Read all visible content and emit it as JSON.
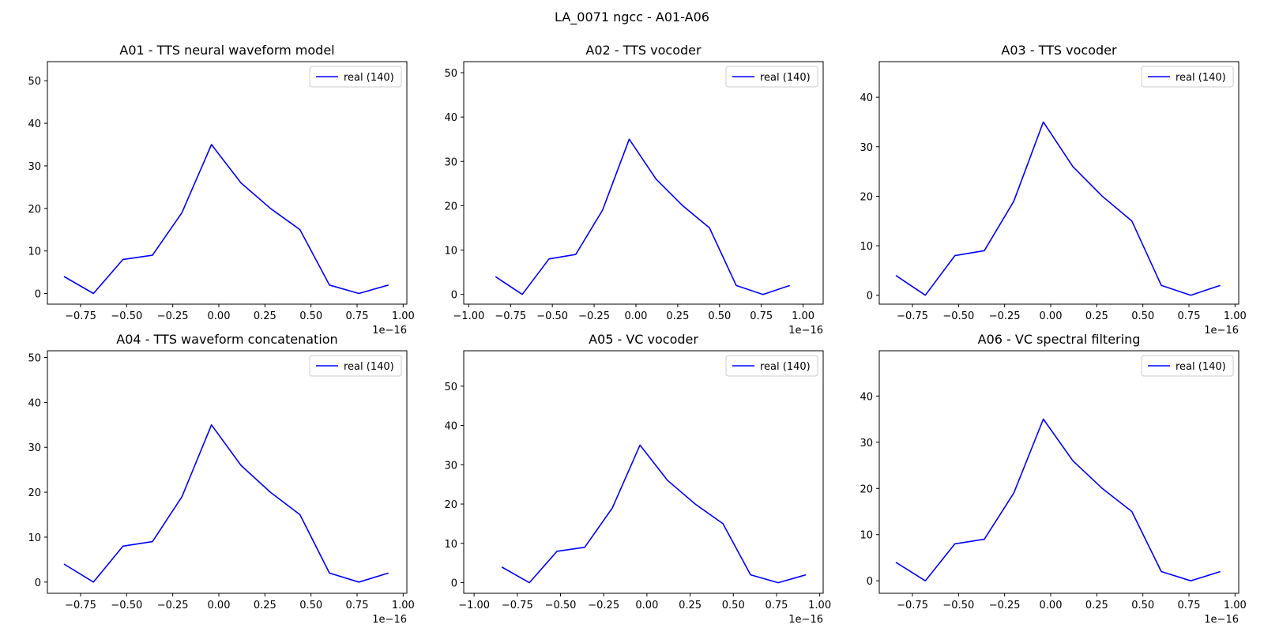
{
  "suptitle": "LA_0071 ngcc - A01-A06",
  "chart_data": [
    {
      "type": "line",
      "title": "A01 - TTS neural waveform model",
      "x_offset_label": "1e−16",
      "xlim": [
        -0.93,
        1.02
      ],
      "ylim": [
        -2.5,
        54.5
      ],
      "xticks": [
        -0.75,
        -0.5,
        -0.25,
        0.0,
        0.25,
        0.5,
        0.75,
        1.0
      ],
      "xtick_labels": [
        "−0.75",
        "−0.50",
        "−0.25",
        "0.00",
        "0.25",
        "0.50",
        "0.75",
        "1.00"
      ],
      "yticks": [
        0,
        10,
        20,
        30,
        40,
        50
      ],
      "grid": false,
      "legend_position": "top-right",
      "series": [
        {
          "name": "real (140)",
          "color": "#0000ff",
          "x": [
            -0.84,
            -0.68,
            -0.52,
            -0.36,
            -0.2,
            -0.04,
            0.12,
            0.28,
            0.44,
            0.6,
            0.76,
            0.92
          ],
          "y": [
            4,
            0,
            8,
            9,
            19,
            35,
            26,
            20,
            15,
            2,
            0,
            2
          ]
        }
      ]
    },
    {
      "type": "line",
      "title": "A02 - TTS vocoder",
      "x_offset_label": "1e−16",
      "xlim": [
        -1.03,
        1.12
      ],
      "ylim": [
        -2.2,
        52.5
      ],
      "xticks": [
        -1.0,
        -0.75,
        -0.5,
        -0.25,
        0.0,
        0.25,
        0.5,
        0.75,
        1.0
      ],
      "xtick_labels": [
        "−1.00",
        "−0.75",
        "−0.50",
        "−0.25",
        "0.00",
        "0.25",
        "0.50",
        "0.75",
        "1.00"
      ],
      "yticks": [
        0,
        10,
        20,
        30,
        40,
        50
      ],
      "grid": false,
      "legend_position": "top-right",
      "series": [
        {
          "name": "real (140)",
          "color": "#0000ff",
          "x": [
            -0.84,
            -0.68,
            -0.52,
            -0.36,
            -0.2,
            -0.04,
            0.12,
            0.28,
            0.44,
            0.6,
            0.76,
            0.92
          ],
          "y": [
            4,
            0,
            8,
            9,
            19,
            35,
            26,
            20,
            15,
            2,
            0,
            2
          ]
        }
      ]
    },
    {
      "type": "line",
      "title": "A03 - TTS vocoder",
      "x_offset_label": "1e−16",
      "xlim": [
        -0.93,
        1.02
      ],
      "ylim": [
        -1.8,
        47.2
      ],
      "xticks": [
        -0.75,
        -0.5,
        -0.25,
        0.0,
        0.25,
        0.5,
        0.75,
        1.0
      ],
      "xtick_labels": [
        "−0.75",
        "−0.50",
        "−0.25",
        "0.00",
        "0.25",
        "0.50",
        "0.75",
        "1.00"
      ],
      "yticks": [
        0,
        10,
        20,
        30,
        40
      ],
      "grid": false,
      "legend_position": "top-right",
      "series": [
        {
          "name": "real (140)",
          "color": "#0000ff",
          "x": [
            -0.84,
            -0.68,
            -0.52,
            -0.36,
            -0.2,
            -0.04,
            0.12,
            0.28,
            0.44,
            0.6,
            0.76,
            0.92
          ],
          "y": [
            4,
            0,
            8,
            9,
            19,
            35,
            26,
            20,
            15,
            2,
            0,
            2
          ]
        }
      ]
    },
    {
      "type": "line",
      "title": "A04 - TTS waveform concatenation",
      "x_offset_label": "1e−16",
      "xlim": [
        -0.93,
        1.02
      ],
      "ylim": [
        -2.5,
        51.5
      ],
      "xticks": [
        -0.75,
        -0.5,
        -0.25,
        0.0,
        0.25,
        0.5,
        0.75,
        1.0
      ],
      "xtick_labels": [
        "−0.75",
        "−0.50",
        "−0.25",
        "0.00",
        "0.25",
        "0.50",
        "0.75",
        "1.00"
      ],
      "yticks": [
        0,
        10,
        20,
        30,
        40,
        50
      ],
      "grid": false,
      "legend_position": "top-right",
      "series": [
        {
          "name": "real (140)",
          "color": "#0000ff",
          "x": [
            -0.84,
            -0.68,
            -0.52,
            -0.36,
            -0.2,
            -0.04,
            0.12,
            0.28,
            0.44,
            0.6,
            0.76,
            0.92
          ],
          "y": [
            4,
            0,
            8,
            9,
            19,
            35,
            26,
            20,
            15,
            2,
            0,
            2
          ]
        }
      ]
    },
    {
      "type": "line",
      "title": "A05 - VC vocoder",
      "x_offset_label": "1e−16",
      "xlim": [
        -1.06,
        1.02
      ],
      "ylim": [
        -2.7,
        59
      ],
      "xticks": [
        -1.0,
        -0.75,
        -0.5,
        -0.25,
        0.0,
        0.25,
        0.5,
        0.75,
        1.0
      ],
      "xtick_labels": [
        "−1.00",
        "−0.75",
        "−0.50",
        "−0.25",
        "0.00",
        "0.25",
        "0.50",
        "0.75",
        "1.00"
      ],
      "yticks": [
        0,
        10,
        20,
        30,
        40,
        50
      ],
      "grid": false,
      "legend_position": "top-right",
      "series": [
        {
          "name": "real (140)",
          "color": "#0000ff",
          "x": [
            -0.84,
            -0.68,
            -0.52,
            -0.36,
            -0.2,
            -0.04,
            0.12,
            0.28,
            0.44,
            0.6,
            0.76,
            0.92
          ],
          "y": [
            4,
            0,
            8,
            9,
            19,
            35,
            26,
            20,
            15,
            2,
            0,
            2
          ]
        }
      ]
    },
    {
      "type": "line",
      "title": "A06 - VC spectral filtering",
      "x_offset_label": "1e−16",
      "xlim": [
        -0.93,
        1.02
      ],
      "ylim": [
        -2.7,
        49.8
      ],
      "xticks": [
        -0.75,
        -0.5,
        -0.25,
        0.0,
        0.25,
        0.5,
        0.75,
        1.0
      ],
      "xtick_labels": [
        "−0.75",
        "−0.50",
        "−0.25",
        "0.00",
        "0.25",
        "0.50",
        "0.75",
        "1.00"
      ],
      "yticks": [
        0,
        10,
        20,
        30,
        40
      ],
      "grid": false,
      "legend_position": "top-right",
      "series": [
        {
          "name": "real (140)",
          "color": "#0000ff",
          "x": [
            -0.84,
            -0.68,
            -0.52,
            -0.36,
            -0.2,
            -0.04,
            0.12,
            0.28,
            0.44,
            0.6,
            0.76,
            0.92
          ],
          "y": [
            4,
            0,
            8,
            9,
            19,
            35,
            26,
            20,
            15,
            2,
            0,
            2
          ]
        }
      ]
    }
  ]
}
